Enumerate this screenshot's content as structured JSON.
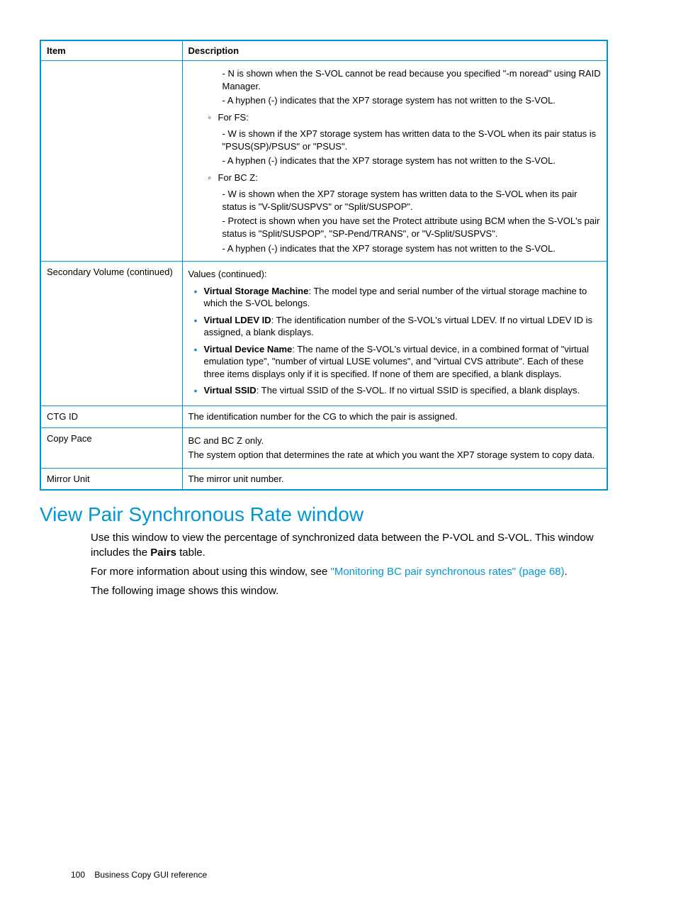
{
  "table": {
    "headers": {
      "item": "Item",
      "description": "Description"
    },
    "row1": {
      "n_line": "- N is shown when the S-VOL cannot be read because you specified \"-m noread\" using RAID Manager.",
      "hyphen_a": "- A hyphen (-) indicates that the XP7 storage system has not written to the S-VOL.",
      "for_fs": "For FS:",
      "fs_w": "- W is shown if the XP7 storage system has written data to the S-VOL when its pair status is \"PSUS(SP)/PSUS\" or \"PSUS\".",
      "fs_hyphen": "- A hyphen (-) indicates that the XP7 storage system has not written to the S-VOL.",
      "for_bcz": "For BC Z:",
      "bcz_w": "- W is shown when the XP7 storage system has written data to the S-VOL when its pair status is \"V-Split/SUSPVS\" or \"Split/SUSPOP\".",
      "bcz_protect": "- Protect is shown when you have set the Protect attribute using BCM when the S-VOL's pair status is \"Split/SUSPOP\", \"SP-Pend/TRANS\", or \"V-Split/SUSPVS\".",
      "bcz_hyphen": "- A hyphen (-) indicates that the XP7 storage system has not written to the S-VOL."
    },
    "row2": {
      "item": "Secondary Volume (continued)",
      "intro": "Values (continued):",
      "vsm_label": "Virtual Storage Machine",
      "vsm_text": ": The model type and serial number of the virtual storage machine to which the S-VOL belongs.",
      "vldev_label": "Virtual LDEV ID",
      "vldev_text": ": The identification number of the S-VOL's virtual LDEV. If no virtual LDEV ID is assigned, a blank displays.",
      "vdn_label": "Virtual Device Name",
      "vdn_text": ": The name of the S-VOL's virtual device, in a combined format of \"virtual emulation type\", \"number of virtual LUSE volumes\", and \"virtual CVS attribute\". Each of these three items displays only if it is specified. If none of them are specified, a blank displays.",
      "vssid_label": "Virtual SSID",
      "vssid_text": ": The virtual SSID of the S-VOL. If no virtual SSID is specified, a blank displays."
    },
    "row3": {
      "item": "CTG ID",
      "desc": "The identification number for the CG to which the pair is assigned."
    },
    "row4": {
      "item": "Copy Pace",
      "line1": "BC and BC Z only.",
      "line2": "The system option that determines the rate at which you want the XP7 storage system to copy data."
    },
    "row5": {
      "item": "Mirror Unit",
      "desc": "The mirror unit number."
    }
  },
  "section": {
    "heading": "View Pair Synchronous Rate window",
    "p1a": "Use this window to view the percentage of synchronized data between the P-VOL and S-VOL. This window includes the ",
    "p1b": "Pairs",
    "p1c": " table.",
    "p2a": "For more information about using this window, see ",
    "p2link": "\"Monitoring BC pair synchronous rates\" (page 68)",
    "p2b": ".",
    "p3": "The following image shows this window."
  },
  "footer": {
    "page": "100",
    "title": "Business Copy GUI reference"
  },
  "colors": {
    "accent": "#0096d6",
    "text": "#000000",
    "bg": "#ffffff"
  }
}
